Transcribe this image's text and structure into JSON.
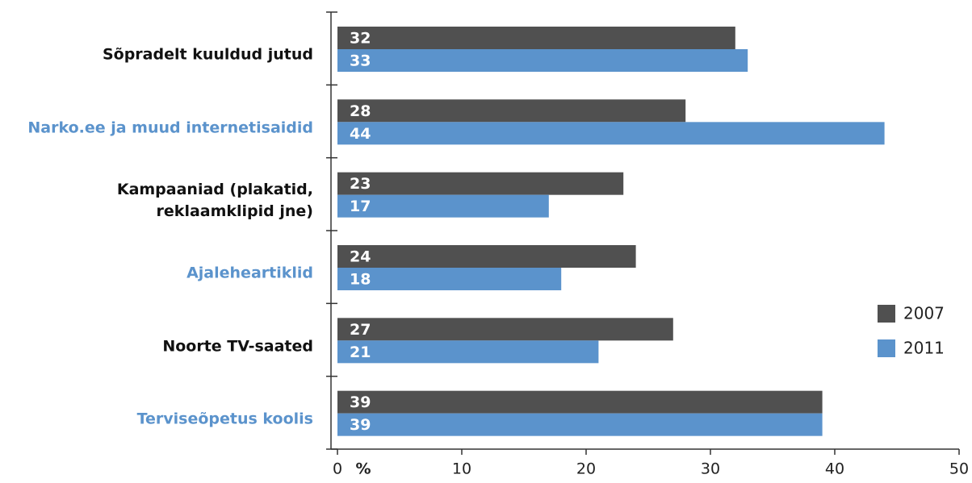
{
  "chart_data": {
    "type": "hbar",
    "categories": [
      "Sõpradelt kuuldud jutud",
      "Narko.ee ja muud internetisaidid",
      "Kampaaniad (plakatid,\nreklaamklipid jne)",
      "Ajaleheartiklid",
      "Noorte TV-saated",
      "Terviseõpetus koolis"
    ],
    "category_colors": [
      "#111111",
      "#5b93cc",
      "#111111",
      "#5b93cc",
      "#111111",
      "#5b93cc"
    ],
    "series": [
      {
        "name": "2007",
        "color": "#505050",
        "values": [
          32,
          28,
          23,
          24,
          27,
          39
        ]
      },
      {
        "name": "2011",
        "color": "#5b93cc",
        "values": [
          33,
          44,
          17,
          18,
          21,
          39
        ]
      }
    ],
    "x_label": "%",
    "xlim": [
      0,
      50
    ],
    "xticks": [
      0,
      10,
      20,
      30,
      40,
      50
    ]
  }
}
